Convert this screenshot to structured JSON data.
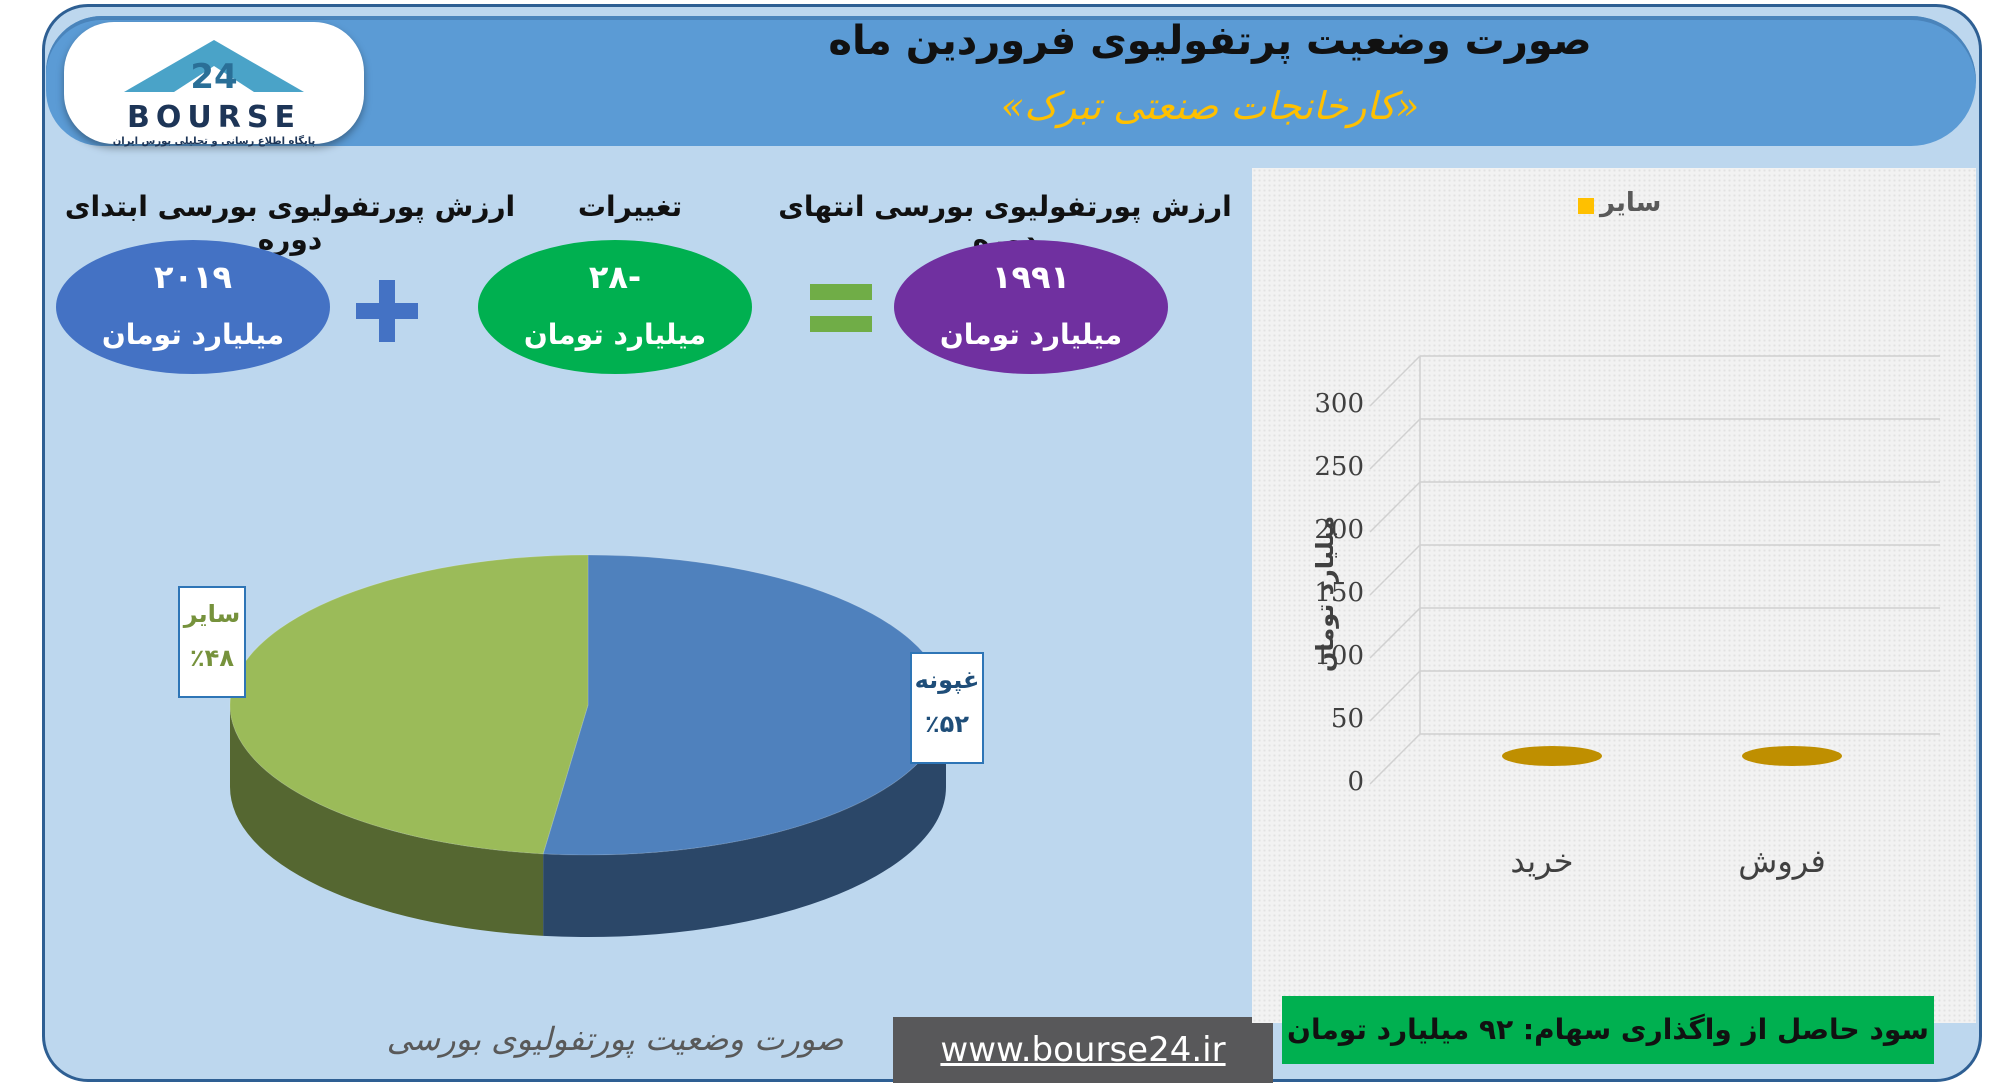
{
  "header": {
    "title": "صورت وضعیت پرتفولیوی فروردین ماه",
    "subtitle": "«کارخانجات صنعتی تبرک»"
  },
  "logo": {
    "wordmark": "BOURSE",
    "tagline": "پایگاه اطلاع رسانی و تحلیلی بورس ایران"
  },
  "summary": {
    "start": {
      "label": "ارزش پورتفولیوی بورسی ابتدای دوره",
      "value": "۲۰۱۹",
      "unit": "میلیارد تومان",
      "color": "#4472c4"
    },
    "change": {
      "label": "تغییرات",
      "value": "-۲۸",
      "unit": "میلیارد تومان",
      "color": "#00b050"
    },
    "end": {
      "label": "ارزش پورتفولیوی بورسی انتهای دوره",
      "value": "۱۹۹۱",
      "unit": "میلیارد تومان",
      "color": "#7030a0"
    }
  },
  "chart_data": [
    {
      "type": "pie",
      "title": "",
      "caption": "صورت وضعیت پورتفولیوی بورسی",
      "slices": [
        {
          "label": "غپونه",
          "value": 52,
          "display": "٪۵۲",
          "color": "#4f81bd"
        },
        {
          "label": "سایر",
          "value": 48,
          "display": "٪۴۸",
          "color": "#9bbb59"
        }
      ]
    },
    {
      "type": "bar",
      "title": "",
      "categories": [
        "خرید",
        "فروش"
      ],
      "series": [
        {
          "name": "سایر",
          "values": [
            0,
            0
          ],
          "color": "#ffc000"
        }
      ],
      "ylabel": "میلیارد تومان",
      "yticks": [
        0,
        50,
        100,
        150,
        200,
        250,
        300
      ],
      "ylim": [
        0,
        300
      ],
      "legend": "top"
    }
  ],
  "footer": {
    "profit_text": "سود حاصل از واگذاری سهام: ۹۲ میلیارد تومان",
    "url": "www.bourse24.ir"
  }
}
